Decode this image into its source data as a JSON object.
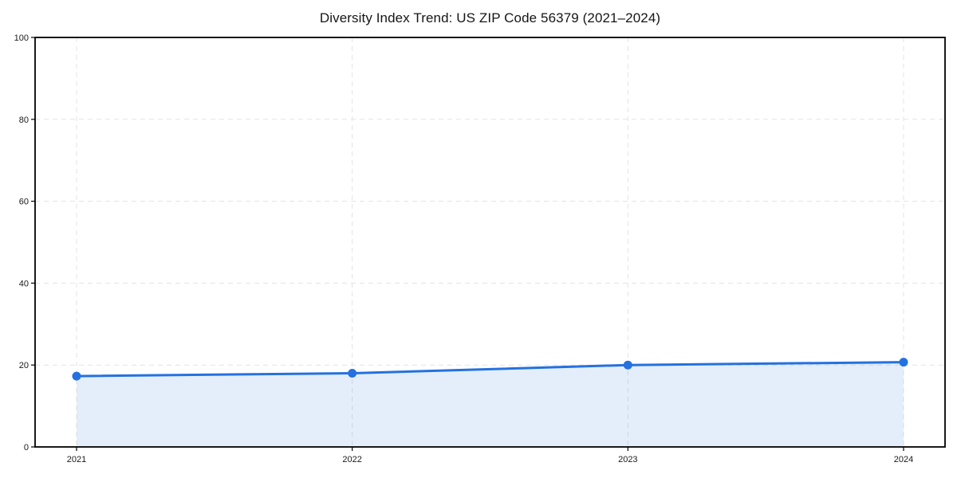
{
  "chart_data": {
    "type": "line",
    "title": "Diversity Index Trend: US ZIP Code 56379 (2021–2024)",
    "categories": [
      "2021",
      "2022",
      "2023",
      "2024"
    ],
    "series": [
      {
        "name": "Diversity Index",
        "values": [
          17.3,
          18,
          20,
          20.7
        ]
      }
    ],
    "xlabel": "",
    "ylabel": "",
    "ylim": [
      0,
      100
    ],
    "yticks": [
      0,
      20,
      40,
      60,
      80,
      100
    ],
    "grid": "dashed",
    "legend": "none",
    "area_fill": true,
    "colors": {
      "line": "#2471e0",
      "marker": "#2471e0",
      "fill": "rgba(36,113,224,0.12)",
      "grid": "#e3e3e3",
      "frame": "#000000",
      "tick_text": "#1a1a1a"
    }
  }
}
